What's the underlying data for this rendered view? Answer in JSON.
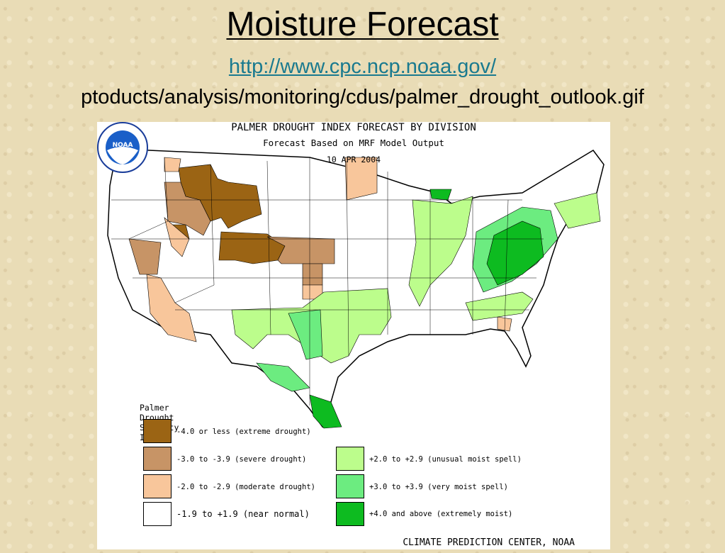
{
  "slide": {
    "title": "Moisture Forecast",
    "link_text": "http://www.cpc.ncp.noaa.gov/",
    "path_text": "ptoducts/analysis/monitoring/cdus/palmer_drought_outlook.gif"
  },
  "figure": {
    "title_line1": "PALMER DROUGHT INDEX FORECAST BY DIVISION",
    "title_line2": "Forecast Based on MRF Model Output",
    "date": "10 APR 2004",
    "credit": "CLIMATE PREDICTION CENTER, NOAA",
    "logo_text": "NOAA",
    "legend": {
      "heading": "Palmer Drought Severity Index",
      "items": [
        {
          "label": "-4.0 or less (extreme drought)",
          "color": "#9b6414"
        },
        {
          "label": "-3.0 to -3.9 (severe drought)",
          "color": "#c79466"
        },
        {
          "label": "-2.0 to -2.9 (moderate drought)",
          "color": "#f8c69b"
        },
        {
          "label": "-1.9 to +1.9 (near normal)",
          "color": "#ffffff"
        },
        {
          "label": "+2.0 to +2.9 (unusual moist spell)",
          "color": "#bcfd8c"
        },
        {
          "label": "+3.0 to +3.9 (very moist spell)",
          "color": "#6cec80"
        },
        {
          "label": "+4.0 and above (extremely moist)",
          "color": "#0dbb20"
        }
      ]
    }
  }
}
